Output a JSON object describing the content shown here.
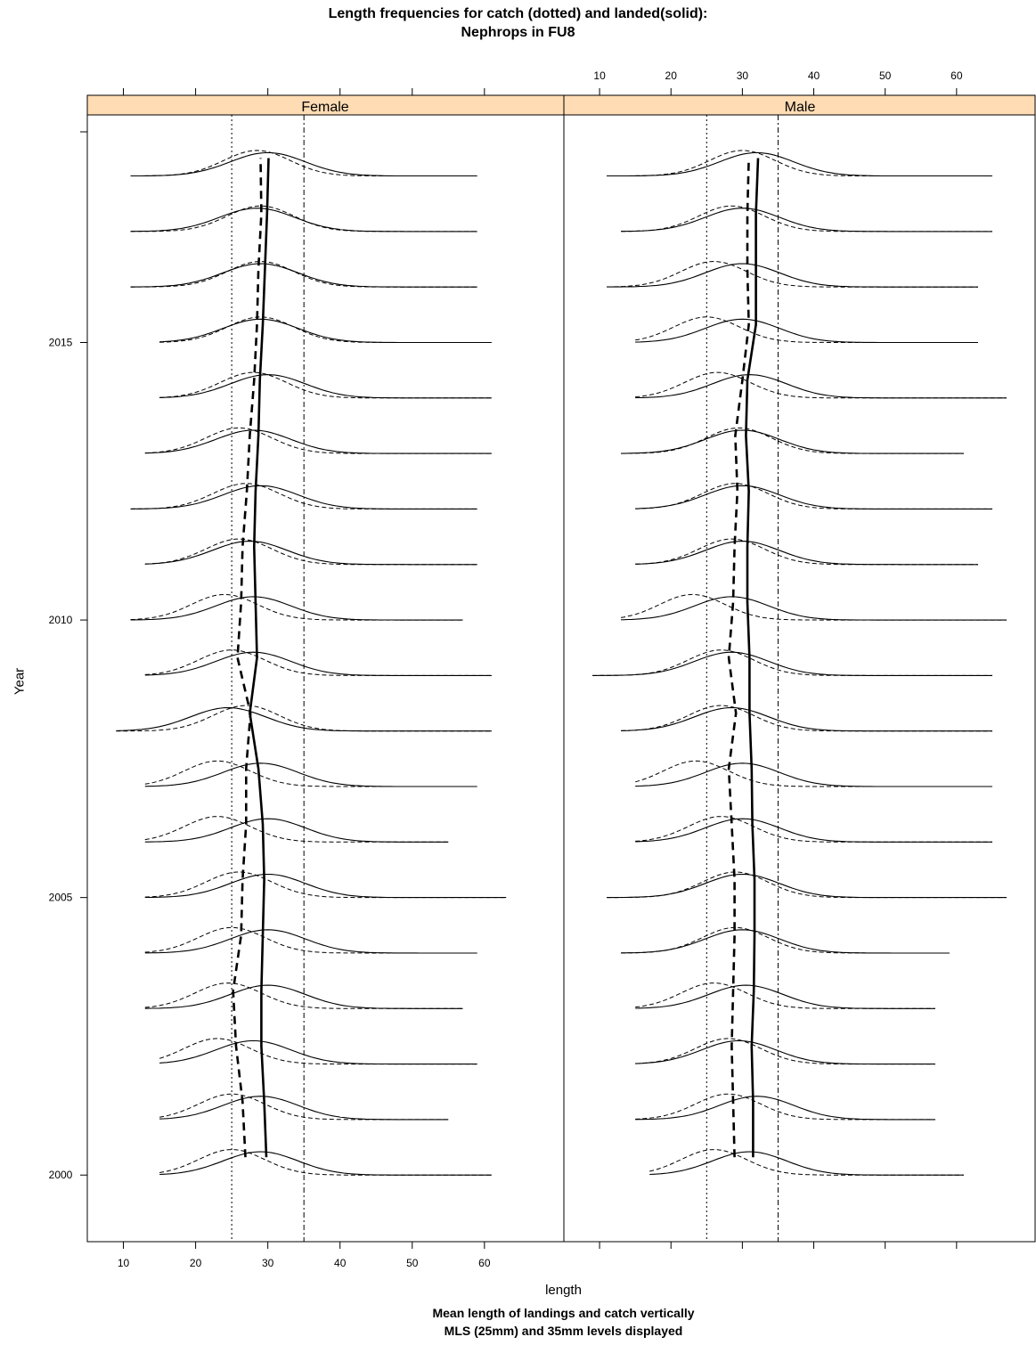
{
  "title_line1": "Length frequencies for catch (dotted) and landed(solid):",
  "title_line2": "Nephrops in FU8",
  "xlabel": "length",
  "ylabel": "Year",
  "note_line1": "Mean length of landings and catch vertically",
  "note_line2": "MLS (25mm) and 35mm levels displayed",
  "strip_color": "#ffdcb4",
  "chart_data": {
    "type": "line",
    "panels": [
      "Female",
      "Male"
    ],
    "x_ticks": [
      10,
      20,
      30,
      40,
      50,
      60
    ],
    "xlim": [
      5,
      71
    ],
    "y_ticks": [
      2000,
      2005,
      2010,
      2015
    ],
    "ylim": [
      1998.8,
      2019.1
    ],
    "reference_lines": [
      25,
      35
    ],
    "years": [
      2000,
      2001,
      2002,
      2003,
      2004,
      2005,
      2006,
      2007,
      2008,
      2009,
      2010,
      2011,
      2012,
      2013,
      2014,
      2015,
      2016,
      2017,
      2018
    ],
    "female": {
      "mean_landed": [
        29.8,
        29.5,
        29.1,
        29.1,
        29.3,
        29.5,
        29.3,
        28.7,
        27.5,
        28.5,
        28.3,
        28.1,
        28.3,
        28.7,
        28.9,
        29.3,
        29.6,
        29.9,
        30.1
      ],
      "mean_catch": [
        26.9,
        26.5,
        25.6,
        25.2,
        26.3,
        26.5,
        27.0,
        27.0,
        27.6,
        25.8,
        26.3,
        26.5,
        27.1,
        27.5,
        28.1,
        28.5,
        28.7,
        29.1,
        29.0
      ],
      "catch_peak": [
        25.0,
        25.0,
        23.0,
        24.5,
        25.0,
        26.0,
        23.0,
        23.0,
        27.0,
        25.0,
        24.0,
        26.0,
        27.0,
        26.0,
        28.0,
        29.0,
        29.0,
        29.0,
        28.5
      ],
      "landed_peak": [
        29.0,
        29.0,
        28.0,
        30.0,
        30.0,
        30.0,
        30.0,
        29.0,
        24.5,
        28.0,
        28.0,
        27.5,
        29.0,
        28.0,
        30.0,
        29.0,
        29.0,
        28.5,
        30.0
      ],
      "x_start": [
        15,
        15,
        15,
        13,
        13,
        13,
        13,
        13,
        9,
        13,
        11,
        13,
        11,
        13,
        15,
        15,
        11,
        11,
        11
      ],
      "x_end": [
        61,
        55,
        59,
        57,
        59,
        63,
        55,
        59,
        61,
        61,
        57,
        59,
        59,
        61,
        61,
        61,
        59,
        59,
        59
      ]
    },
    "male": {
      "mean_landed": [
        31.5,
        31.5,
        31.3,
        31.6,
        31.7,
        31.7,
        31.4,
        31.3,
        31.0,
        31.0,
        30.7,
        30.7,
        30.9,
        30.5,
        30.7,
        31.9,
        31.9,
        31.9,
        32.2
      ],
      "mean_catch": [
        28.9,
        28.7,
        28.5,
        28.7,
        28.9,
        28.9,
        28.5,
        28.1,
        29.1,
        28.1,
        28.7,
        28.9,
        29.3,
        29.0,
        30.0,
        30.9,
        30.7,
        30.7,
        30.9
      ],
      "catch_peak": [
        26.0,
        28.0,
        28.0,
        26.0,
        29.0,
        29.0,
        27.0,
        23.5,
        27.0,
        27.0,
        23.0,
        28.5,
        29.0,
        29.5,
        26.5,
        25.0,
        26.0,
        28.5,
        30.0
      ],
      "landed_peak": [
        31.0,
        32.0,
        29.5,
        30.5,
        30.0,
        30.0,
        30.0,
        30.0,
        28.5,
        28.5,
        28.5,
        30.0,
        30.0,
        30.0,
        31.0,
        30.0,
        30.0,
        30.0,
        32.0
      ],
      "x_start": [
        17,
        15,
        15,
        15,
        13,
        11,
        15,
        15,
        13,
        9,
        13,
        15,
        15,
        13,
        15,
        15,
        11,
        13,
        11
      ],
      "x_end": [
        61,
        57,
        57,
        57,
        59,
        67,
        65,
        65,
        65,
        65,
        67,
        63,
        65,
        61,
        67,
        63,
        63,
        65,
        65
      ]
    }
  }
}
